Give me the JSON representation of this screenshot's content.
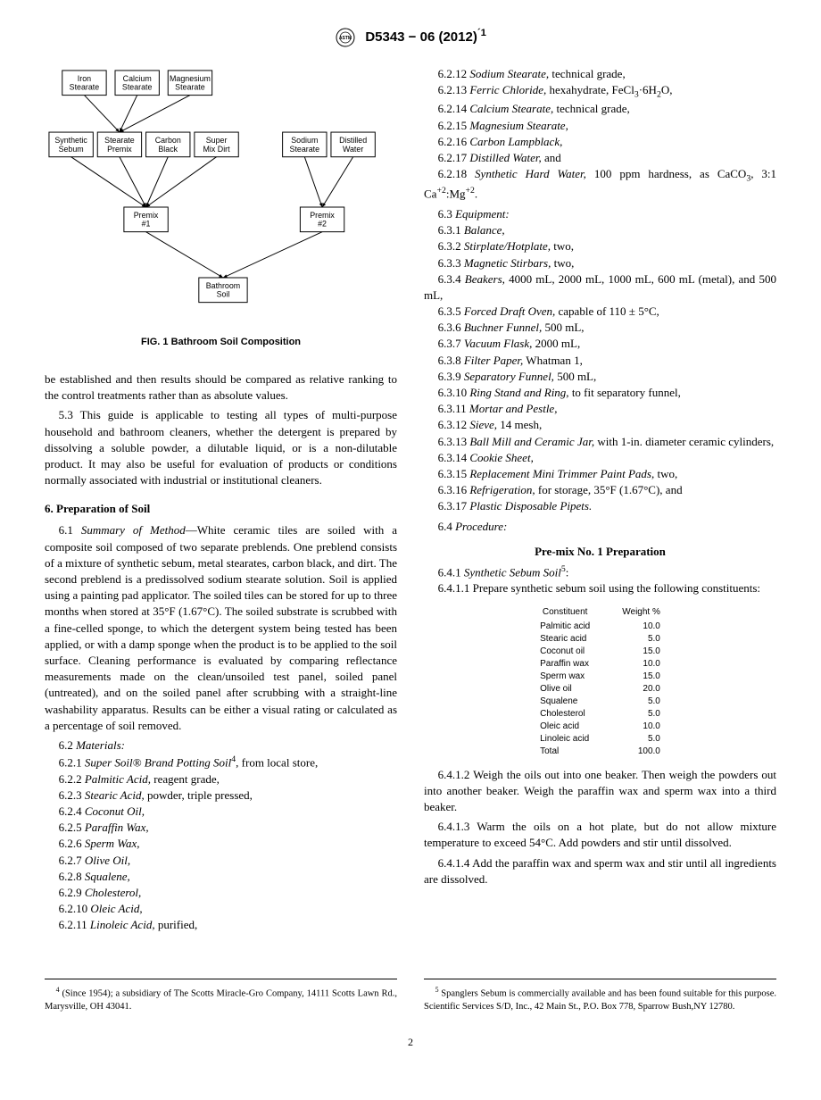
{
  "header": {
    "designation": "D5343 − 06 (2012)",
    "epsilon": "´1"
  },
  "figure": {
    "caption": "FIG. 1  Bathroom Soil Composition",
    "nodes": {
      "r1": [
        "Iron Stearate",
        "Calcium Stearate",
        "Magnesium Stearate"
      ],
      "r2": [
        "Synthetic Sebum",
        "Stearate Premix",
        "Carbon Black",
        "Super Mix Dirt",
        "Sodium Stearate",
        "Distilled Water"
      ],
      "r3": [
        "Premix #1",
        "Premix #2"
      ],
      "r4": [
        "Bathroom Soil"
      ]
    },
    "style": {
      "box_bg": "#ffffff",
      "box_border": "#000000",
      "font_size": 9,
      "stroke_width": 1
    }
  },
  "left": {
    "p_intro": "be established and then results should be compared as relative ranking to the control treatments rather than as absolute values.",
    "p_53": "5.3 This guide is applicable to testing all types of multi-purpose household and bathroom cleaners, whether the detergent is prepared by dissolving a soluble powder, a dilutable liquid, or is a non-dilutable product. It may also be useful for evaluation of products or conditions normally associated with industrial or institutional cleaners.",
    "sec6": "6.  Preparation of Soil",
    "p_61a": "6.1 ",
    "p_61b": "Summary of Method",
    "p_61c": "—White ceramic tiles are soiled with a composite soil composed of two separate preblends. One preblend consists of a mixture of synthetic sebum, metal stearates, carbon black, and dirt. The second preblend is a predissolved sodium stearate solution. Soil is applied using a painting pad applicator. The soiled tiles can be stored for up to three months when stored at 35°F (1.67°C). The soiled substrate is scrubbed with a fine-celled sponge, to which the detergent system being tested has been applied, or with a damp sponge when the product is to be applied to the soil surface. Cleaning performance is evaluated by comparing reflectance measurements made on the clean/unsoiled test panel, soiled panel (untreated), and on the soiled panel after scrubbing with a straight-line washability apparatus. Results can be either a visual rating or calculated as a percentage of soil removed.",
    "materials_head": "6.2 ",
    "materials_it": "Materials:",
    "materials": [
      {
        "n": "6.2.1",
        "it": "Super Soil® Brand Potting Soil",
        "sup": "4",
        "tail": ", from local store,"
      },
      {
        "n": "6.2.2",
        "it": "Palmitic Acid,",
        "tail": " reagent grade,"
      },
      {
        "n": "6.2.3",
        "it": "Stearic Acid,",
        "tail": " powder, triple pressed,"
      },
      {
        "n": "6.2.4",
        "it": "Coconut Oil,",
        "tail": ""
      },
      {
        "n": "6.2.5",
        "it": "Paraffin Wax,",
        "tail": ""
      },
      {
        "n": "6.2.6",
        "it": "Sperm Wax,",
        "tail": ""
      },
      {
        "n": "6.2.7",
        "it": "Olive Oil,",
        "tail": ""
      },
      {
        "n": "6.2.8",
        "it": "Squalene,",
        "tail": ""
      },
      {
        "n": "6.2.9",
        "it": "Cholesterol,",
        "tail": ""
      },
      {
        "n": "6.2.10",
        "it": "Oleic Acid,",
        "tail": ""
      },
      {
        "n": "6.2.11",
        "it": "Linoleic Acid,",
        "tail": " purified,"
      }
    ]
  },
  "right": {
    "materials2": [
      {
        "n": "6.2.12",
        "it": "Sodium Stearate,",
        "tail": " technical grade,"
      },
      {
        "n": "6.2.13",
        "it": "Ferric Chloride,",
        "tail": " hexahydrate, FeCl",
        "sub": "3",
        "tail2": "·6H",
        "sub2": "2",
        "tail3": "O,"
      },
      {
        "n": "6.2.14",
        "it": "Calcium Stearate,",
        "tail": " technical grade,"
      },
      {
        "n": "6.2.15",
        "it": "Magnesium Stearate,",
        "tail": ""
      },
      {
        "n": "6.2.16",
        "it": "Carbon Lampblack,",
        "tail": ""
      },
      {
        "n": "6.2.17",
        "it": "Distilled Water,",
        "tail": " and"
      }
    ],
    "m6218a": "6.2.18 ",
    "m6218it": "Synthetic Hard Water,",
    "m6218b": " 100 ppm hardness, as CaCO",
    "m6218c": ", 3:1 Ca",
    "m6218d": ":Mg",
    "m6218e": ".",
    "equip_head": "6.3 ",
    "equip_it": "Equipment:",
    "equipment": [
      {
        "n": "6.3.1",
        "it": "Balance,",
        "tail": ""
      },
      {
        "n": "6.3.2",
        "it": "Stirplate/Hotplate,",
        "tail": " two,"
      },
      {
        "n": "6.3.3",
        "it": "Magnetic Stirbars,",
        "tail": " two,"
      },
      {
        "n": "6.3.4",
        "it": "Beakers,",
        "tail": " 4000 mL, 2000 mL, 1000 mL, 600 mL (metal), and 500 mL,"
      },
      {
        "n": "6.3.5",
        "it": "Forced Draft Oven,",
        "tail": " capable of 110 ± 5°C,"
      },
      {
        "n": "6.3.6",
        "it": "Buchner Funnel,",
        "tail": " 500 mL,"
      },
      {
        "n": "6.3.7",
        "it": "Vacuum Flask,",
        "tail": " 2000 mL,"
      },
      {
        "n": "6.3.8",
        "it": "Filter Paper,",
        "tail": " Whatman 1,"
      },
      {
        "n": "6.3.9",
        "it": "Separatory Funnel,",
        "tail": " 500 mL,"
      },
      {
        "n": "6.3.10",
        "it": "Ring Stand and Ring,",
        "tail": " to fit separatory funnel,"
      },
      {
        "n": "6.3.11",
        "it": "Mortar and Pestle,",
        "tail": ""
      },
      {
        "n": "6.3.12",
        "it": "Sieve,",
        "tail": " 14 mesh,"
      },
      {
        "n": "6.3.13",
        "it": "Ball Mill and Ceramic Jar,",
        "tail": " with 1-in. diameter ceramic cylinders,"
      },
      {
        "n": "6.3.14",
        "it": "Cookie Sheet,",
        "tail": ""
      },
      {
        "n": "6.3.15",
        "it": "Replacement Mini Trimmer Paint Pads,",
        "tail": " two,"
      },
      {
        "n": "6.3.16",
        "it": "Refrigeration,",
        "tail": " for storage, 35°F (1.67°C), and"
      },
      {
        "n": "6.3.17",
        "it": "Plastic Disposable Pipets.",
        "tail": ""
      }
    ],
    "proc_head": "6.4 ",
    "proc_it": "Procedure:",
    "premix_head": "Pre-mix No. 1 Preparation",
    "p641a": "6.4.1 ",
    "p641it": "Synthetic Sebum Soil",
    "p641sup": "5",
    "p641b": ":",
    "p6411": "6.4.1.1 Prepare synthetic sebum soil using the following constituents:",
    "table": {
      "header": [
        "Constituent",
        "Weight %"
      ],
      "rows": [
        [
          "Palmitic acid",
          "10.0"
        ],
        [
          "Stearic acid",
          "5.0"
        ],
        [
          "Coconut oil",
          "15.0"
        ],
        [
          "Paraffin wax",
          "10.0"
        ],
        [
          "Sperm wax",
          "15.0"
        ],
        [
          "Olive oil",
          "20.0"
        ],
        [
          "Squalene",
          "5.0"
        ],
        [
          "Cholesterol",
          "5.0"
        ],
        [
          "Oleic acid",
          "10.0"
        ],
        [
          "Linoleic acid",
          "5.0"
        ],
        [
          "Total",
          "100.0"
        ]
      ]
    },
    "p6412": "6.4.1.2 Weigh the oils out into one beaker. Then weigh the powders out into another beaker. Weigh the paraffin wax and sperm wax into a third beaker.",
    "p6413": "6.4.1.3 Warm the oils on a hot plate, but do not allow mixture temperature to exceed 54°C. Add powders and stir until dissolved.",
    "p6414": "6.4.1.4 Add the paraffin wax and sperm wax and stir until all ingredients are dissolved."
  },
  "footnotes": {
    "f4": " (Since 1954); a subsidiary of The Scotts Miracle-Gro Company, 14111 Scotts Lawn Rd., Marysville, OH 43041.",
    "f5": " Spanglers Sebum is commercially available and has been found suitable for this purpose. Scientific Services S/D, Inc., 42 Main St., P.O. Box 778, Sparrow Bush,NY 12780."
  },
  "pagenum": "2"
}
